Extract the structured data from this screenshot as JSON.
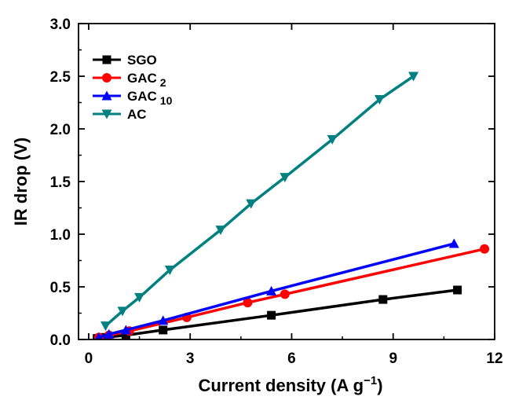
{
  "chart_data": {
    "type": "line",
    "title": "",
    "xlabel": "Current density (A g",
    "xlabel_superscript": "−1",
    "xlabel_suffix": ")",
    "ylabel": "IR drop (V)",
    "xlim": [
      -0.3,
      12
    ],
    "ylim": [
      0,
      3
    ],
    "xticks": [
      0,
      3,
      6,
      9,
      12
    ],
    "xtick_labels": [
      "0",
      "3",
      "6",
      "9",
      "12"
    ],
    "yticks": [
      0,
      0.5,
      1.0,
      1.5,
      2.0,
      2.5,
      3.0
    ],
    "ytick_labels": [
      "0.0",
      "0.5",
      "1.0",
      "1.5",
      "2.0",
      "2.5",
      "3.0"
    ],
    "grid": false,
    "legend_position": "top-left",
    "series": [
      {
        "name": "SGO",
        "subscript": "",
        "color": "#000000",
        "marker": "square",
        "x": [
          0.25,
          0.5,
          1.1,
          2.2,
          5.4,
          8.7,
          10.9
        ],
        "y": [
          0.01,
          0.02,
          0.04,
          0.09,
          0.23,
          0.38,
          0.47
        ]
      },
      {
        "name": "GAC",
        "subscript": "2",
        "color": "#ff0000",
        "marker": "circle",
        "x": [
          0.3,
          0.6,
          1.2,
          2.9,
          4.7,
          5.8,
          11.7
        ],
        "y": [
          0.02,
          0.04,
          0.08,
          0.21,
          0.35,
          0.43,
          0.86
        ]
      },
      {
        "name": "GAC",
        "subscript": "10",
        "color": "#0000ff",
        "marker": "triangle-up",
        "x": [
          0.3,
          0.6,
          1.1,
          2.2,
          5.4,
          10.8
        ],
        "y": [
          0.02,
          0.05,
          0.09,
          0.18,
          0.46,
          0.91
        ]
      },
      {
        "name": "AC",
        "subscript": "",
        "color": "#008080",
        "marker": "triangle-down",
        "x": [
          0.5,
          1.0,
          1.5,
          2.4,
          3.9,
          4.8,
          5.8,
          7.2,
          8.6,
          9.6
        ],
        "y": [
          0.13,
          0.27,
          0.4,
          0.66,
          1.04,
          1.29,
          1.54,
          1.9,
          2.28,
          2.5
        ]
      }
    ]
  }
}
